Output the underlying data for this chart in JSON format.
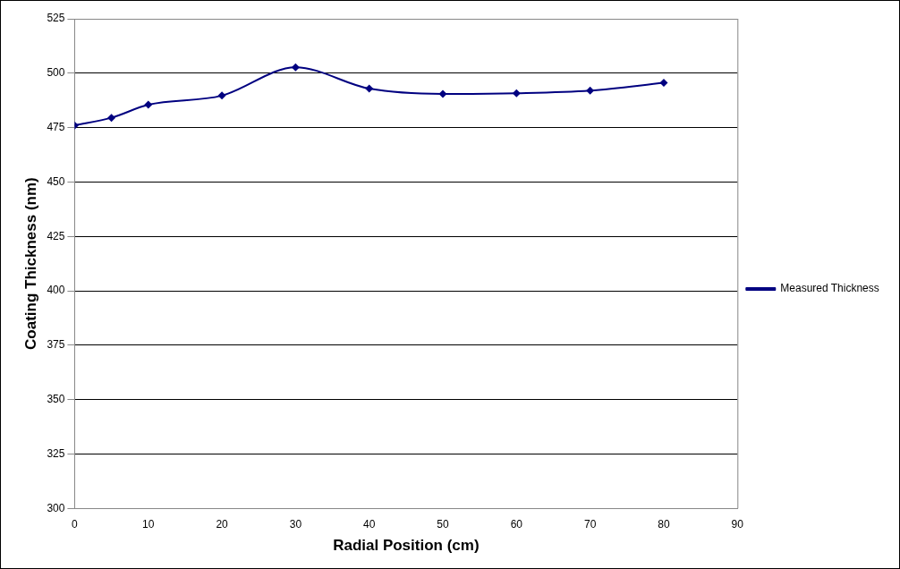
{
  "chart_data": {
    "type": "line",
    "xlabel": "Radial Position (cm)",
    "ylabel": "Coating Thickness (nm)",
    "x": [
      0,
      5,
      10,
      20,
      30,
      40,
      50,
      60,
      70,
      80
    ],
    "series": [
      {
        "name": "Measured Thickness",
        "color": "#000080",
        "values": [
          476,
          479.5,
          485.5,
          489.7,
          502.7,
          492.9,
          490.5,
          490.8,
          492,
          495.6
        ]
      }
    ],
    "xlim": [
      0,
      90
    ],
    "xticks": [
      0,
      10,
      20,
      30,
      40,
      50,
      60,
      70,
      80,
      90
    ],
    "ylim": [
      300,
      525
    ],
    "yticks": [
      300,
      325,
      350,
      375,
      400,
      425,
      450,
      475,
      500,
      525
    ],
    "grid": "y",
    "legend": "right",
    "marker": "diamond",
    "line_style": "solid"
  }
}
